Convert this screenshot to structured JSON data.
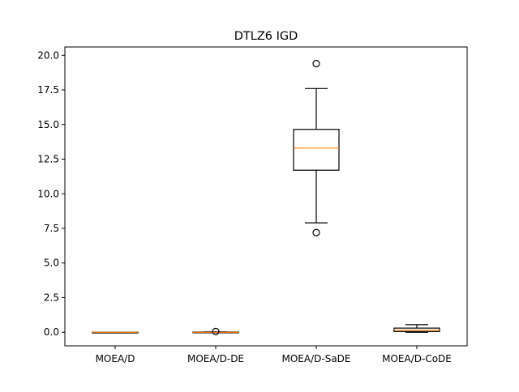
{
  "chart_data": {
    "type": "boxplot",
    "title": "DTLZ6 IGD",
    "xlabel": "",
    "ylabel": "",
    "ylim": [
      -0.98,
      20.6
    ],
    "grid": false,
    "legend": "none",
    "y_ticks": [
      0.0,
      2.5,
      5.0,
      7.5,
      10.0,
      12.5,
      15.0,
      17.5,
      20.0
    ],
    "y_tick_labels": [
      "0.0",
      "2.5",
      "5.0",
      "7.5",
      "10.0",
      "12.5",
      "15.0",
      "17.5",
      "20.0"
    ],
    "categories": [
      "MOEA/D",
      "MOEA/D-DE",
      "MOEA/D-SaDE",
      "MOEA/D-CoDE"
    ],
    "boxes": [
      {
        "label": "MOEA/D",
        "whisker_low": 0.0,
        "q1": 0.0,
        "median": 0.0,
        "q3": 0.01,
        "whisker_high": 0.01,
        "outliers": []
      },
      {
        "label": "MOEA/D-DE",
        "whisker_low": 0.0,
        "q1": 0.0,
        "median": 0.0,
        "q3": 0.02,
        "whisker_high": 0.03,
        "outliers": [
          0.05
        ]
      },
      {
        "label": "MOEA/D-SaDE",
        "whisker_low": 7.9,
        "q1": 11.7,
        "median": 13.3,
        "q3": 14.65,
        "whisker_high": 17.6,
        "outliers": [
          7.2,
          19.4
        ]
      },
      {
        "label": "MOEA/D-CoDE",
        "whisker_low": 0.0,
        "q1": 0.05,
        "median": 0.15,
        "q3": 0.3,
        "whisker_high": 0.55,
        "outliers": []
      }
    ]
  },
  "colors": {
    "box": "#000000",
    "median": "#ff7f0e",
    "background": "#ffffff"
  }
}
